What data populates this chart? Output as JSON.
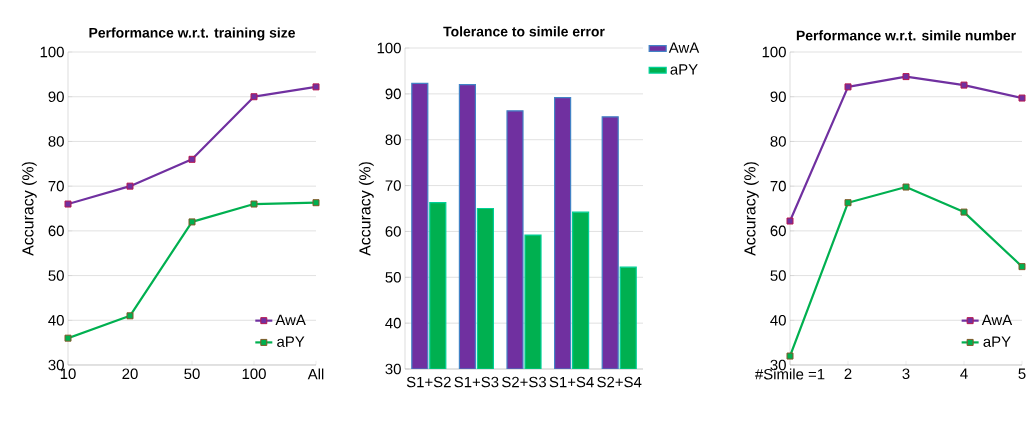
{
  "chart_data": [
    {
      "type": "line",
      "title": "Performance w.r.t. training size",
      "ylabel": "Accuracy (%)",
      "categories": [
        "10",
        "20",
        "50",
        "100",
        "All"
      ],
      "ylim": [
        30,
        100
      ],
      "yticks": [
        30,
        40,
        50,
        60,
        70,
        80,
        90,
        100
      ],
      "grid": "y",
      "legend": "bottom right",
      "marker": "square",
      "series": [
        {
          "name": "AwA",
          "color": "#7030a0",
          "values": [
            66,
            70,
            76,
            90,
            92.2
          ]
        },
        {
          "name": "aPY",
          "color": "#00b050",
          "values": [
            36,
            41,
            62,
            66,
            66.3
          ]
        }
      ]
    },
    {
      "type": "bar",
      "title": "Tolerance to simile error",
      "ylabel": "Accuracy (%)",
      "categories": [
        "S1+S2",
        "S1+S3",
        "S2+S3",
        "S1+S4",
        "S2+S4"
      ],
      "ylim": [
        30,
        100
      ],
      "yticks": [
        30,
        40,
        50,
        60,
        70,
        80,
        90,
        100
      ],
      "grid": "y",
      "legend": "top right",
      "series": [
        {
          "name": "AwA",
          "color": "#7030a0",
          "values": [
            92.3,
            92,
            86.3,
            89.2,
            85
          ]
        },
        {
          "name": "aPY",
          "color": "#00b050",
          "values": [
            66.3,
            65,
            59.2,
            64.2,
            52.2
          ]
        }
      ]
    },
    {
      "type": "line",
      "title": "Performance w.r.t. simile number",
      "ylabel": "Accuracy (%)",
      "categories": [
        "#Simile =1",
        "2",
        "3",
        "4",
        "5"
      ],
      "ylim": [
        30,
        100
      ],
      "yticks": [
        30,
        40,
        50,
        60,
        70,
        80,
        90,
        100
      ],
      "grid": "y",
      "legend": "bottom right",
      "marker": "square",
      "series": [
        {
          "name": "AwA",
          "color": "#7030a0",
          "values": [
            62.2,
            92.2,
            94.5,
            92.6,
            89.7
          ]
        },
        {
          "name": "aPY",
          "color": "#00b050",
          "values": [
            32,
            66.3,
            69.8,
            64.2,
            52
          ]
        }
      ]
    }
  ]
}
